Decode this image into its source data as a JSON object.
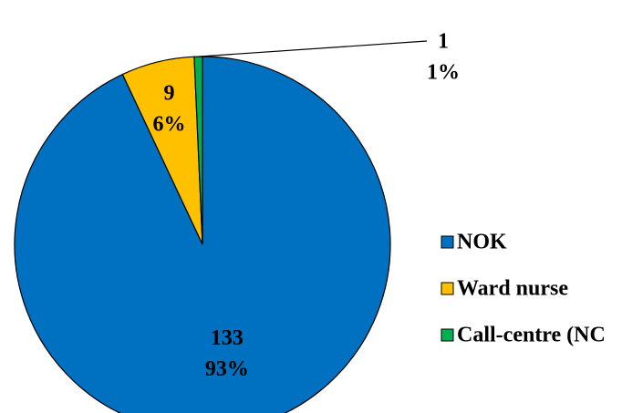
{
  "chart_data": {
    "type": "pie",
    "categories": [
      "NOK",
      "Ward nurse",
      "Call-centre (NC"
    ],
    "values": [
      133,
      9,
      1
    ],
    "percent_labels": [
      "93%",
      "6%",
      "1%"
    ],
    "colors": [
      "#0070c0",
      "#ffc000",
      "#00b050"
    ],
    "legend": "right"
  }
}
